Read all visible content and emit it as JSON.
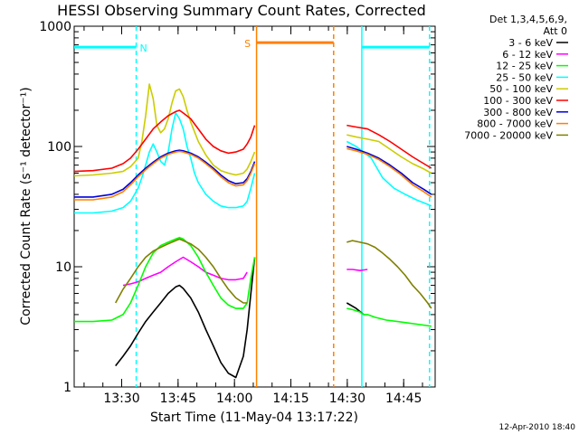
{
  "chart_data": {
    "type": "line",
    "title": "HESSI Observing Summary Count Rates, Corrected",
    "xlabel": "Start Time (11-May-04 13:17:22)",
    "ylabel": "Corrected Count Rate (s⁻¹ detector⁻¹)",
    "x_unit": "minutes after 13:17:22",
    "xlim": [
      0,
      96
    ],
    "ylim": [
      1,
      1000
    ],
    "yscale": "log",
    "x_ticks": [
      {
        "value": 12.63,
        "label": "13:30"
      },
      {
        "value": 27.63,
        "label": "13:45"
      },
      {
        "value": 42.63,
        "label": "14:00"
      },
      {
        "value": 57.63,
        "label": "14:15"
      },
      {
        "value": 72.63,
        "label": "14:30"
      },
      {
        "value": 87.63,
        "label": "14:45"
      }
    ],
    "y_ticks": [
      {
        "value": 1,
        "label": "1"
      },
      {
        "value": 10,
        "label": "10"
      },
      {
        "value": 100,
        "label": "100"
      },
      {
        "value": 1000,
        "label": "1000"
      }
    ],
    "legend_header": [
      "Det 1,3,4,5,6,9,",
      "Att 0"
    ],
    "legend_position": "right",
    "series": [
      {
        "name": "3 - 6 keV",
        "color": "#000000",
        "x": [
          11,
          13,
          15,
          17,
          19,
          21,
          23,
          25,
          27,
          28,
          29,
          31,
          33,
          35,
          37,
          39,
          41,
          43,
          45,
          46,
          47,
          48
        ],
        "y": [
          1.5,
          1.8,
          2.2,
          2.8,
          3.5,
          4.2,
          5,
          6,
          6.8,
          7,
          6.6,
          5.5,
          4.2,
          3,
          2.2,
          1.6,
          1.3,
          1.2,
          1.8,
          3,
          6,
          12
        ]
      },
      {
        "name": "6 - 12 keV",
        "color": "#ff00ff",
        "x": [
          13,
          15,
          17,
          19,
          21,
          23,
          25,
          27,
          29,
          31,
          33,
          35,
          37,
          39,
          41,
          43,
          45,
          46
        ],
        "y": [
          7,
          7.2,
          7.5,
          8,
          8.5,
          9,
          10,
          11,
          12,
          11,
          10,
          9,
          8.5,
          8,
          7.8,
          7.8,
          8,
          9
        ]
      },
      {
        "name": "12 - 25 keV",
        "color": "#00ff00",
        "x": [
          0,
          5,
          10,
          13,
          15,
          17,
          19,
          21,
          23,
          25,
          27,
          28,
          29,
          31,
          33,
          35,
          37,
          39,
          41,
          43,
          45,
          46,
          47,
          48
        ],
        "y": [
          3.5,
          3.5,
          3.6,
          4,
          5,
          7,
          10,
          13,
          15,
          16,
          17,
          17.5,
          17,
          15,
          12,
          9,
          7,
          5.5,
          4.8,
          4.5,
          4.5,
          5,
          8,
          12
        ]
      },
      {
        "name": "25 - 50 keV",
        "color": "#00ffff",
        "x": [
          0,
          5,
          10,
          13,
          15,
          17,
          18,
          19,
          20,
          21,
          22,
          23,
          24,
          25,
          26,
          27,
          28,
          29,
          30,
          31,
          32,
          33,
          35,
          37,
          39,
          41,
          43,
          45,
          46,
          47,
          48
        ],
        "y": [
          28,
          28,
          29,
          31,
          35,
          45,
          55,
          70,
          90,
          105,
          90,
          75,
          70,
          90,
          140,
          190,
          170,
          140,
          100,
          80,
          60,
          50,
          40,
          35,
          32,
          31,
          31,
          32,
          35,
          45,
          60
        ]
      },
      {
        "name": "50 - 100 keV",
        "color": "#cccc00",
        "x": [
          0,
          5,
          10,
          13,
          15,
          17,
          18,
          19,
          20,
          21,
          22,
          23,
          24,
          25,
          26,
          27,
          28,
          29,
          30,
          31,
          33,
          35,
          37,
          39,
          41,
          43,
          45,
          46,
          47,
          48
        ],
        "y": [
          57,
          58,
          60,
          62,
          68,
          80,
          110,
          180,
          330,
          250,
          150,
          130,
          140,
          170,
          230,
          290,
          300,
          260,
          200,
          160,
          110,
          85,
          70,
          63,
          60,
          58,
          60,
          65,
          75,
          90
        ]
      },
      {
        "name": "100 - 300 keV",
        "color": "#ff0000",
        "x": [
          0,
          5,
          10,
          13,
          15,
          17,
          19,
          21,
          23,
          25,
          27,
          28,
          29,
          31,
          33,
          35,
          37,
          39,
          41,
          43,
          45,
          46,
          47,
          48
        ],
        "y": [
          62,
          63,
          66,
          72,
          80,
          95,
          115,
          140,
          160,
          180,
          195,
          200,
          190,
          170,
          140,
          115,
          100,
          92,
          88,
          90,
          95,
          105,
          120,
          150
        ]
      },
      {
        "name": "300 - 800 keV",
        "color": "#0000dd",
        "x": [
          0,
          5,
          10,
          13,
          15,
          17,
          19,
          21,
          23,
          25,
          27,
          28,
          29,
          31,
          33,
          35,
          37,
          39,
          41,
          43,
          45,
          46,
          47,
          48
        ],
        "y": [
          38,
          38,
          40,
          44,
          50,
          58,
          66,
          74,
          82,
          88,
          92,
          93,
          92,
          88,
          82,
          74,
          66,
          58,
          52,
          49,
          50,
          54,
          62,
          75
        ]
      },
      {
        "name": "800 - 7000 keV",
        "color": "#ff8000",
        "x": [
          0,
          5,
          10,
          13,
          15,
          17,
          19,
          21,
          23,
          25,
          27,
          28,
          29,
          31,
          33,
          35,
          37,
          39,
          41,
          43,
          45,
          46,
          47,
          48
        ],
        "y": [
          36,
          36,
          38,
          42,
          48,
          56,
          64,
          72,
          80,
          86,
          90,
          91,
          90,
          86,
          80,
          72,
          64,
          56,
          50,
          47,
          48,
          52,
          60,
          72
        ]
      },
      {
        "name": "7000 - 20000 keV",
        "color": "#808000",
        "x": [
          11,
          13,
          15,
          17,
          19,
          21,
          23,
          25,
          27,
          28,
          29,
          31,
          33,
          35,
          37,
          39,
          41,
          43,
          45,
          46
        ],
        "y": [
          5,
          6.5,
          8,
          10,
          12,
          13.5,
          14.5,
          15.5,
          16.5,
          17,
          16.5,
          15.5,
          14,
          12,
          10,
          8,
          6.5,
          5.5,
          5,
          5
        ]
      }
    ],
    "series_after_gap": [
      {
        "name": "3 - 6 keV",
        "color": "#000000",
        "x": [
          72.5,
          75,
          77
        ],
        "y": [
          5,
          4.5,
          4
        ]
      },
      {
        "name": "6 - 12 keV",
        "color": "#ff00ff",
        "x": [
          72.5,
          74,
          76,
          78
        ],
        "y": [
          9.5,
          9.5,
          9.3,
          9.5
        ]
      },
      {
        "name": "12 - 25 keV",
        "color": "#00ff00",
        "x": [
          72.5,
          74,
          76,
          77,
          78,
          80,
          83,
          86,
          89,
          92,
          95
        ],
        "y": [
          4.5,
          4.4,
          4.2,
          4,
          4,
          3.8,
          3.6,
          3.5,
          3.4,
          3.3,
          3.2
        ]
      },
      {
        "name": "25 - 50 keV",
        "color": "#00ffff",
        "x": [
          72.5,
          75,
          77,
          79,
          82,
          85,
          88,
          91,
          94,
          95
        ],
        "y": [
          110,
          100,
          90,
          80,
          55,
          45,
          40,
          36,
          33,
          32
        ]
      },
      {
        "name": "50 - 100 keV",
        "color": "#cccc00",
        "x": [
          72.5,
          75,
          78,
          81,
          84,
          87,
          90,
          93,
          95
        ],
        "y": [
          125,
          120,
          115,
          110,
          95,
          82,
          72,
          65,
          60
        ]
      },
      {
        "name": "100 - 300 keV",
        "color": "#ff0000",
        "x": [
          72.5,
          75,
          78,
          81,
          84,
          87,
          90,
          93,
          95
        ],
        "y": [
          150,
          145,
          140,
          125,
          110,
          95,
          82,
          72,
          66
        ]
      },
      {
        "name": "300 - 800 keV",
        "color": "#0000dd",
        "x": [
          72.5,
          75,
          78,
          81,
          84,
          87,
          90,
          93,
          95
        ],
        "y": [
          100,
          95,
          88,
          80,
          70,
          60,
          50,
          44,
          40
        ]
      },
      {
        "name": "800 - 7000 keV",
        "color": "#ff8000",
        "x": [
          72.5,
          75,
          78,
          81,
          84,
          87,
          90,
          93,
          95
        ],
        "y": [
          96,
          92,
          86,
          78,
          68,
          58,
          48,
          42,
          38
        ]
      },
      {
        "name": "7000 - 20000 keV",
        "color": "#808000",
        "x": [
          72.5,
          74,
          76,
          78,
          80,
          82,
          84,
          86,
          88,
          90,
          92,
          94,
          95
        ],
        "y": [
          16,
          16.5,
          16,
          15.5,
          14.5,
          13,
          11.5,
          10,
          8.5,
          7,
          6,
          5,
          4.5
        ]
      }
    ],
    "bars": [
      {
        "label": "N",
        "color": "#00ffff",
        "x_start": 0,
        "x_end": 16.5,
        "y": 670
      },
      {
        "label": "",
        "color": "#00ffff",
        "x_start": 76.5,
        "x_end": 94.5,
        "y": 670
      },
      {
        "label": "S",
        "color": "#ff8000",
        "x_start": 48.5,
        "x_end": 69,
        "y": 730
      }
    ],
    "markers": [
      {
        "x": 16.5,
        "color": "#00ffff",
        "style": "dashed"
      },
      {
        "x": 48.5,
        "color": "#ff8000",
        "style": "solid"
      },
      {
        "x": 69,
        "color": "#ff8000",
        "style": "dashed"
      },
      {
        "x": 76.5,
        "color": "#00ffff",
        "style": "solid"
      },
      {
        "x": 94.5,
        "color": "#00ffff",
        "style": "dashed"
      }
    ],
    "timestamp": "12-Apr-2010 18:40"
  }
}
